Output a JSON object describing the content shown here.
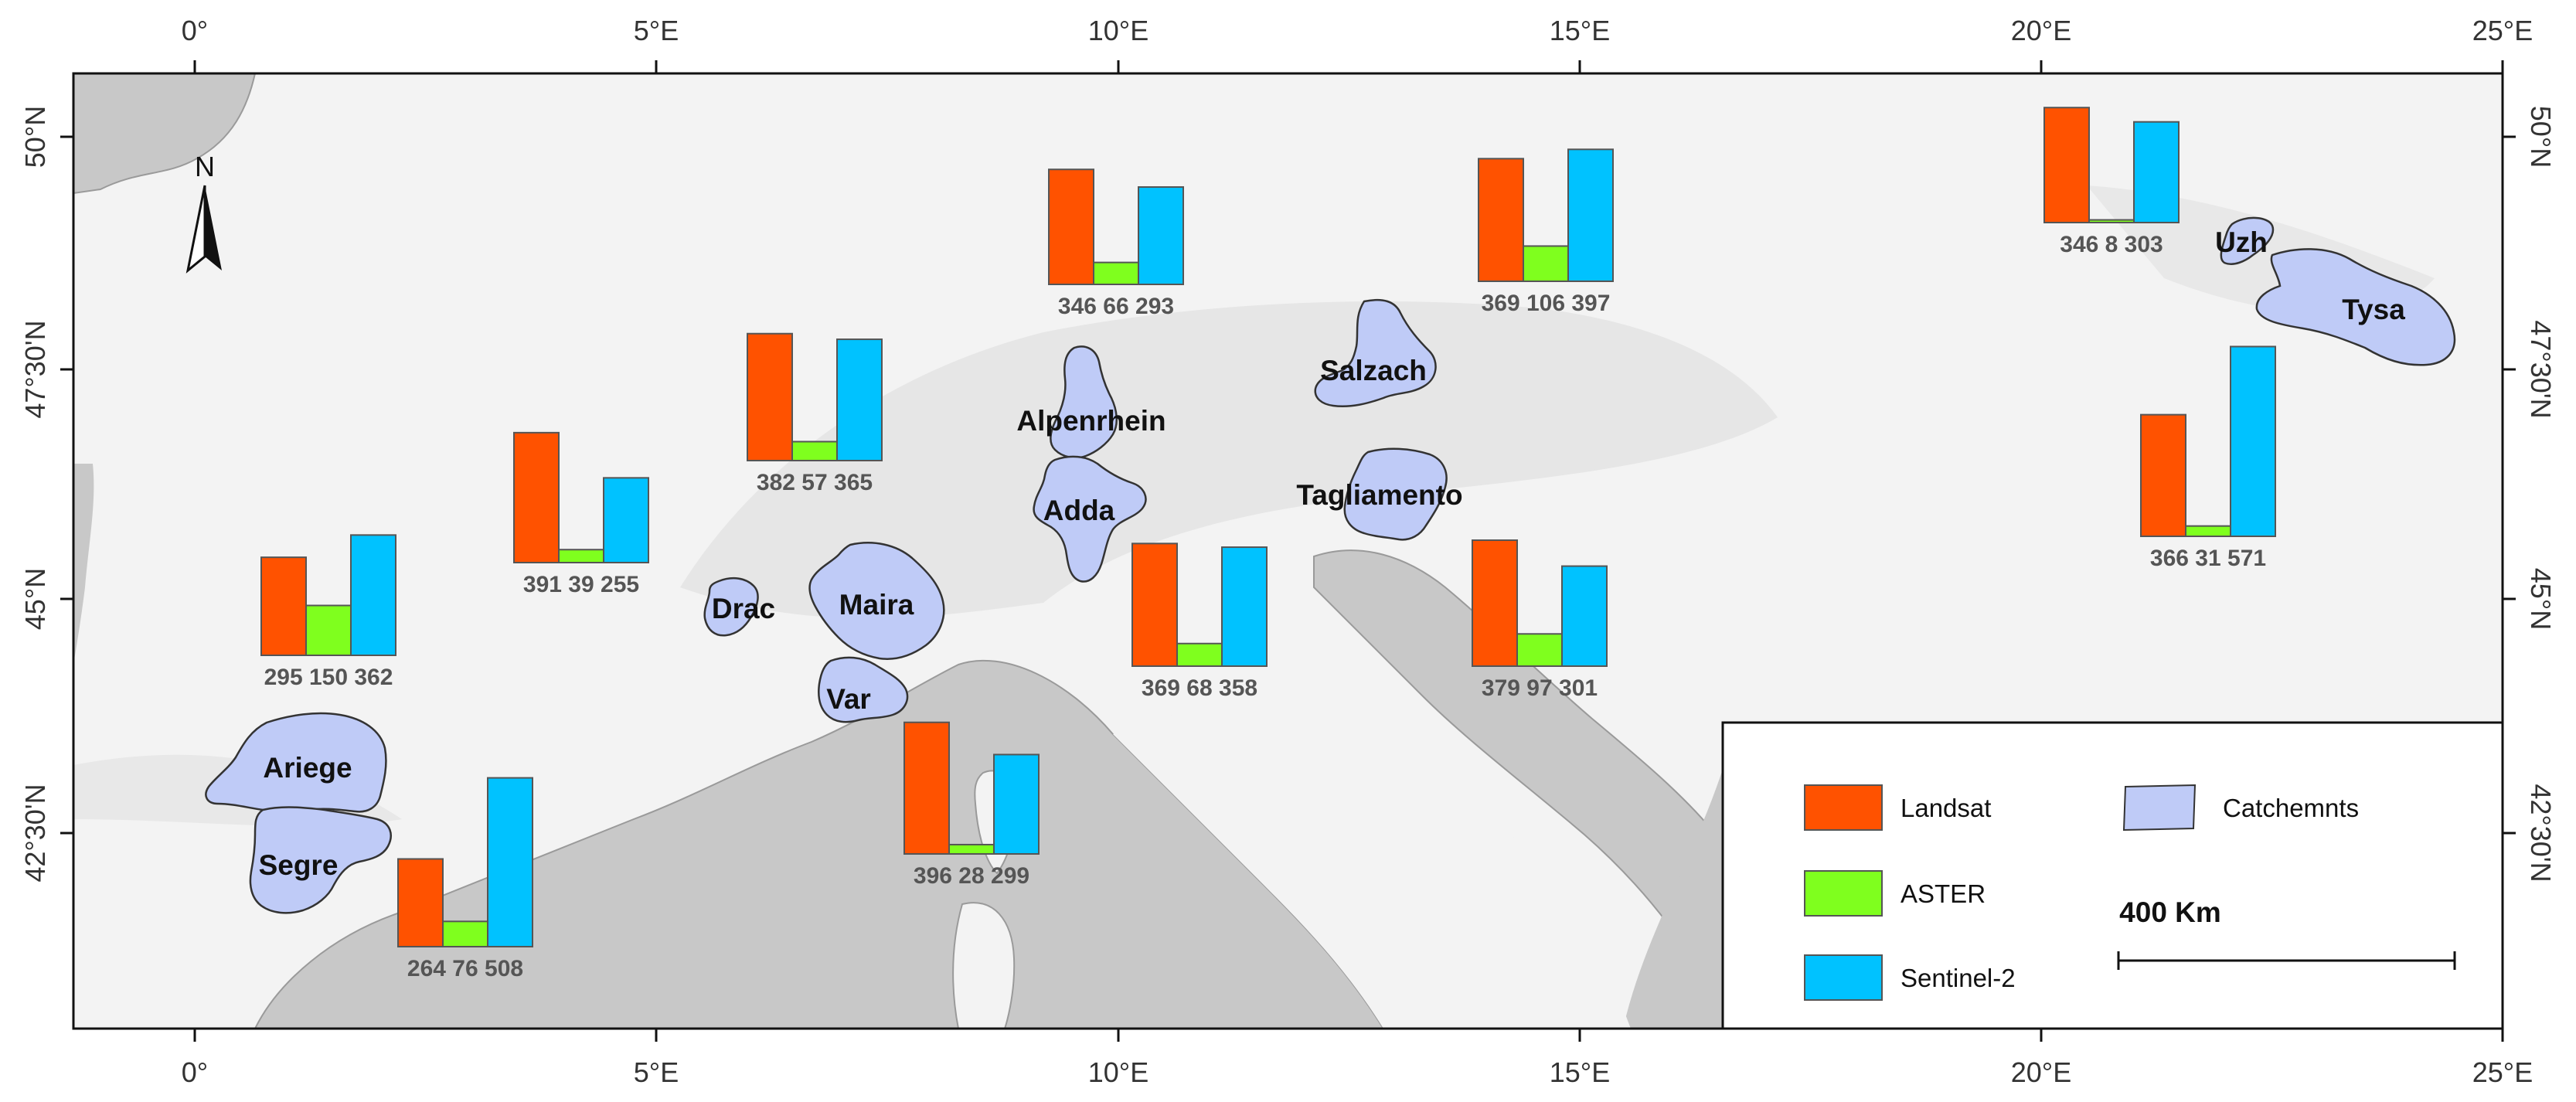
{
  "colors": {
    "landsat": "#ff5200",
    "aster": "#7fff1e",
    "sentinel": "#00c2ff",
    "catchment": "#bfcbf7",
    "sea": "#c8c8c8",
    "land": "#f3f3f3"
  },
  "axes": {
    "top_ticks": [
      "0°",
      "5°E",
      "10°E",
      "15°E",
      "20°E",
      "25°E"
    ],
    "bottom_ticks": [
      "0°",
      "5°E",
      "10°E",
      "15°E",
      "20°E",
      "25°E"
    ],
    "left_ticks": [
      "50°N",
      "47°30'N",
      "45°N",
      "42°30'N"
    ],
    "right_ticks": [
      "50°N",
      "47°30'N",
      "45°N",
      "42°30'N"
    ]
  },
  "north_label": "N",
  "basins": [
    {
      "name": "Uzh"
    },
    {
      "name": "Tysa"
    },
    {
      "name": "Salzach"
    },
    {
      "name": "Alpenrhein"
    },
    {
      "name": "Adda"
    },
    {
      "name": "Tagliamento"
    },
    {
      "name": "Drac"
    },
    {
      "name": "Maira"
    },
    {
      "name": "Var"
    },
    {
      "name": "Ariege"
    },
    {
      "name": "Segre"
    }
  ],
  "chart_data": {
    "type": "bar",
    "series_names": [
      "Landsat",
      "ASTER",
      "Sentinel-2"
    ],
    "groups": [
      {
        "values": [
          295,
          150,
          362
        ]
      },
      {
        "values": [
          391,
          39,
          255
        ]
      },
      {
        "values": [
          382,
          57,
          365
        ]
      },
      {
        "values": [
          346,
          66,
          293
        ]
      },
      {
        "values": [
          369,
          106,
          397
        ]
      },
      {
        "values": [
          346,
          8,
          303
        ]
      },
      {
        "values": [
          366,
          31,
          571
        ]
      },
      {
        "values": [
          369,
          68,
          358
        ]
      },
      {
        "values": [
          379,
          97,
          301
        ]
      },
      {
        "values": [
          396,
          28,
          299
        ]
      },
      {
        "values": [
          264,
          76,
          508
        ]
      }
    ]
  },
  "legend": {
    "landsat": "Landsat",
    "aster": "ASTER",
    "sentinel": "Sentinel-2",
    "catchments": "Catchemnts"
  },
  "scale_bar": {
    "label": "400  Km"
  }
}
